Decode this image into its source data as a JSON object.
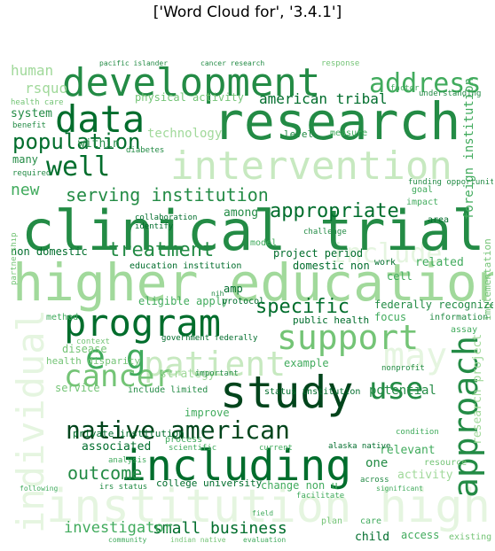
{
  "title": "['Word Cloud for', '3.4.1']",
  "words": {
    "clinical_trial": "clinical trial",
    "higher_education": "higher education",
    "research": "research",
    "development": "development",
    "data": "data",
    "study": "study",
    "including": "including",
    "intervention": "intervention",
    "program": "program",
    "approach": "approach",
    "institution_higher": "institution higher",
    "individual": "individual",
    "support": "support",
    "cancer": "cancer",
    "patient": "patient",
    "native_american": "native american",
    "address": "address",
    "population": "population",
    "well": "well",
    "e_g": "e g",
    "may": "may",
    "treatment": "treatment",
    "use": "use",
    "include": "include",
    "appropriate": "appropriate",
    "specific": "specific",
    "serving_institution": "serving institution",
    "american_tribal": "american tribal",
    "outcome": "outcome",
    "small_business": "small business",
    "investigator": "investigator",
    "foreign_institution": "foreign institution",
    "new": "new",
    "human": "human",
    "rsquo": "rsquo",
    "potential": "potential",
    "federally_recognized": "federally recognized",
    "system": "system",
    "within": "within",
    "many": "many",
    "technology": "technology",
    "among": "among",
    "strategy": "strategy",
    "non_domestic": "non domestic",
    "project_period": "project period",
    "domestic_non": "domestic non",
    "related": "related",
    "education_institution": "education institution",
    "eligible_apply": "eligible apply",
    "amp": "amp",
    "public_health": "public health",
    "focus": "focus",
    "disease": "disease",
    "service": "service",
    "associated": "associated",
    "private_institution": "private institution",
    "college_university": "college university",
    "relevant": "relevant",
    "one": "one",
    "change_non_u": "change non u",
    "status_institution": "status institution",
    "improve": "improve",
    "include_limited": "include limited",
    "example": "example",
    "child": "child",
    "access": "access",
    "existing": "existing",
    "care": "care",
    "resource": "resource",
    "activity": "activity",
    "protocol": "protocol",
    "information": "information",
    "model": "model",
    "level": "level",
    "measure": "measure",
    "method": "method",
    "context": "context",
    "health_disparity": "health disparity",
    "assay": "assay",
    "plan": "plan",
    "cell": "cell",
    "work": "work",
    "area": "area",
    "goal": "goal",
    "impact": "impact",
    "required": "required",
    "benefit": "benefit",
    "diabetes": "diabetes",
    "physical_activity": "physical activity",
    "pacific_islander": "pacific islander",
    "cancer_research": "cancer research",
    "response": "response",
    "understanding": "understanding",
    "funding_opportunity": "funding opportunity",
    "partnership": "partnership",
    "irs_status": "irs status",
    "alaska_native": "alaska native",
    "nonprofit": "nonprofit",
    "indian_native": "indian native",
    "evaluation": "evaluation",
    "analysis": "analysis",
    "process": "process",
    "scientific": "scientific",
    "current": "current",
    "across": "across",
    "significant": "significant",
    "field": "field",
    "community": "community",
    "following": "following",
    "factor": "factor",
    "nih": "nih",
    "government_federally": "government federally",
    "implementation": "implementation",
    "health_care": "health care",
    "identify": "identify",
    "collaboration": "collaboration",
    "challenge": "challenge",
    "important": "important",
    "condition": "condition",
    "facilitate": "facilitate",
    "research_project": "research project"
  },
  "colors": {
    "darkest": "#00441b",
    "dark": "#006d2c",
    "mid_dark": "#238b45",
    "mid": "#41ab5d",
    "mid_light": "#74c476",
    "light": "#a1d99b",
    "lighter": "#c7e9c0",
    "lightest": "#e5f5e0"
  }
}
